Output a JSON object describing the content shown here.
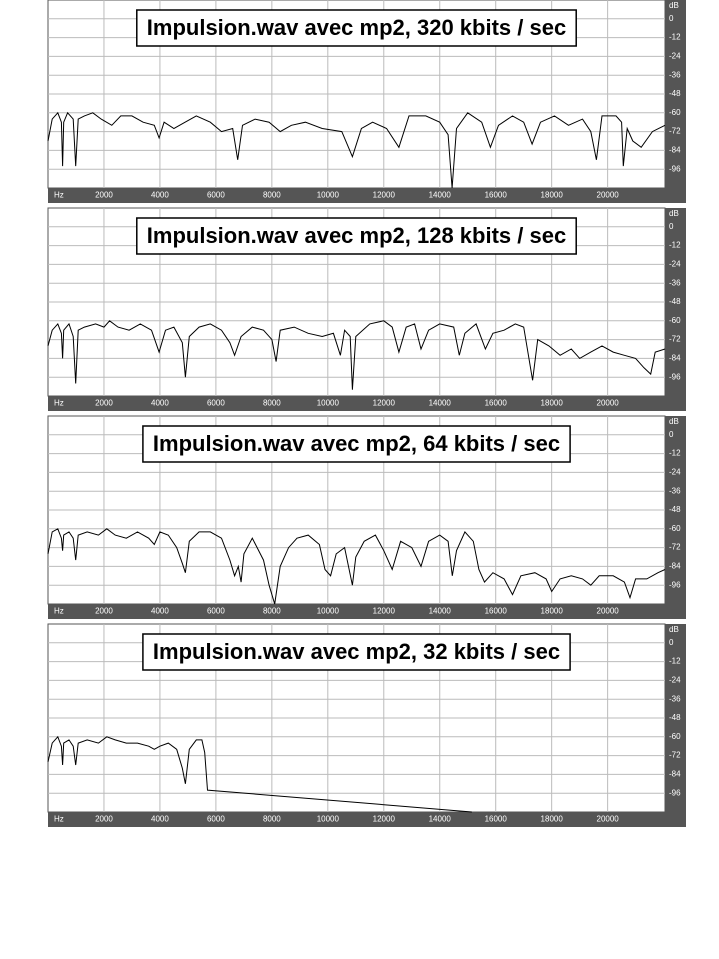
{
  "chart_data": [
    {
      "type": "line",
      "title": "Impulsion.wav avec mp2, 320 kbits / sec",
      "x_label": "Hz",
      "y_label": "dB",
      "color": "#000000",
      "grid": true,
      "xlim": [
        0,
        22050
      ],
      "ylim": [
        -108,
        12
      ],
      "xticks": [
        2000,
        4000,
        6000,
        8000,
        10000,
        12000,
        14000,
        16000,
        18000,
        20000
      ],
      "yticks": [
        0,
        -12,
        -24,
        -36,
        -48,
        -60,
        -72,
        -84,
        -96
      ],
      "x": [
        0,
        150,
        350,
        480,
        520,
        560,
        700,
        900,
        990,
        1080,
        1300,
        1600,
        1900,
        2280,
        2600,
        3000,
        3400,
        3800,
        3970,
        4150,
        4500,
        4900,
        5300,
        5800,
        6200,
        6600,
        6780,
        6950,
        7400,
        7900,
        8300,
        8700,
        9200,
        9800,
        10500,
        10880,
        11200,
        11600,
        12100,
        12540,
        12900,
        13500,
        14000,
        14300,
        14440,
        14600,
        15000,
        15500,
        15810,
        16100,
        16600,
        17000,
        17300,
        17600,
        18100,
        18600,
        19100,
        19400,
        19600,
        19800,
        20300,
        20500,
        20560,
        20700,
        20900,
        21200,
        21600,
        22050
      ],
      "values": [
        -78,
        -64,
        -60,
        -66,
        -94,
        -66,
        -60,
        -64,
        -94,
        -64,
        -62,
        -60,
        -64,
        -68,
        -62,
        -62,
        -66,
        -68,
        -76,
        -66,
        -70,
        -66,
        -62,
        -66,
        -72,
        -70,
        -90,
        -68,
        -64,
        -66,
        -72,
        -68,
        -66,
        -70,
        -72,
        -88,
        -70,
        -66,
        -70,
        -82,
        -62,
        -62,
        -66,
        -74,
        -108,
        -70,
        -60,
        -66,
        -82,
        -68,
        -62,
        -66,
        -80,
        -66,
        -62,
        -68,
        -64,
        -72,
        -90,
        -62,
        -62,
        -66,
        -94,
        -70,
        -78,
        -82,
        -72,
        -68
      ]
    },
    {
      "type": "line",
      "title": "Impulsion.wav avec mp2, 128 kbits / sec",
      "x_label": "Hz",
      "y_label": "dB",
      "color": "#000000",
      "grid": true,
      "xlim": [
        0,
        22050
      ],
      "ylim": [
        -108,
        12
      ],
      "xticks": [
        2000,
        4000,
        6000,
        8000,
        10000,
        12000,
        14000,
        16000,
        18000,
        20000
      ],
      "yticks": [
        0,
        -12,
        -24,
        -36,
        -48,
        -60,
        -72,
        -84,
        -96
      ],
      "x": [
        0,
        150,
        350,
        480,
        520,
        560,
        750,
        900,
        990,
        1080,
        1300,
        1700,
        2000,
        2200,
        2500,
        2900,
        3300,
        3700,
        3970,
        4200,
        4500,
        4800,
        4910,
        5050,
        5400,
        5800,
        6200,
        6500,
        6670,
        6900,
        7300,
        7700,
        8000,
        8150,
        8300,
        8800,
        9300,
        9800,
        10200,
        10450,
        10600,
        10800,
        10880,
        11000,
        11500,
        12000,
        12300,
        12540,
        12800,
        13100,
        13330,
        13600,
        14000,
        14500,
        14700,
        14900,
        15300,
        15630,
        15900,
        16300,
        16700,
        17000,
        17320,
        17500,
        17900,
        18300,
        18700,
        19000,
        19400,
        19800,
        20200,
        20600,
        21000,
        21300,
        21540,
        21700,
        22050
      ],
      "values": [
        -76,
        -66,
        -62,
        -68,
        -84,
        -66,
        -62,
        -70,
        -100,
        -66,
        -64,
        -62,
        -64,
        -60,
        -64,
        -66,
        -62,
        -66,
        -80,
        -66,
        -64,
        -74,
        -96,
        -70,
        -64,
        -62,
        -66,
        -74,
        -82,
        -70,
        -64,
        -66,
        -72,
        -86,
        -66,
        -64,
        -68,
        -70,
        -68,
        -82,
        -66,
        -70,
        -104,
        -70,
        -62,
        -60,
        -64,
        -80,
        -64,
        -62,
        -78,
        -66,
        -62,
        -64,
        -82,
        -68,
        -62,
        -78,
        -68,
        -66,
        -62,
        -64,
        -98,
        -72,
        -76,
        -82,
        -78,
        -84,
        -80,
        -76,
        -80,
        -82,
        -84,
        -90,
        -94,
        -80,
        -78
      ]
    },
    {
      "type": "line",
      "title": "Impulsion.wav avec mp2, 64 kbits / sec",
      "x_label": "Hz",
      "y_label": "dB",
      "color": "#000000",
      "grid": true,
      "xlim": [
        0,
        22050
      ],
      "ylim": [
        -108,
        12
      ],
      "xticks": [
        2000,
        4000,
        6000,
        8000,
        10000,
        12000,
        14000,
        16000,
        18000,
        20000
      ],
      "yticks": [
        0,
        -12,
        -24,
        -36,
        -48,
        -60,
        -72,
        -84,
        -96
      ],
      "x": [
        0,
        150,
        350,
        480,
        520,
        560,
        750,
        900,
        990,
        1080,
        1400,
        1800,
        2100,
        2400,
        2800,
        3200,
        3600,
        3800,
        4000,
        4300,
        4600,
        4800,
        4910,
        5050,
        5400,
        5800,
        6200,
        6500,
        6670,
        6800,
        6900,
        7000,
        7300,
        7700,
        7900,
        8100,
        8300,
        8600,
        8900,
        9300,
        9700,
        9900,
        10100,
        10300,
        10600,
        10880,
        11000,
        11300,
        11700,
        12000,
        12300,
        12600,
        13000,
        13330,
        13600,
        14000,
        14300,
        14450,
        14600,
        14900,
        15200,
        15400,
        15600,
        15900,
        16300,
        16600,
        16900,
        17400,
        17800,
        18000,
        18300,
        18700,
        19100,
        19400,
        19700,
        20200,
        20600,
        20800,
        21000,
        21400,
        21800,
        22050
      ],
      "values": [
        -76,
        -62,
        -60,
        -66,
        -74,
        -64,
        -62,
        -66,
        -80,
        -64,
        -62,
        -64,
        -60,
        -64,
        -66,
        -62,
        -66,
        -70,
        -62,
        -64,
        -72,
        -82,
        -88,
        -68,
        -62,
        -62,
        -66,
        -80,
        -90,
        -84,
        -94,
        -76,
        -66,
        -80,
        -96,
        -108,
        -84,
        -72,
        -66,
        -64,
        -70,
        -86,
        -90,
        -76,
        -72,
        -96,
        -78,
        -68,
        -64,
        -74,
        -86,
        -68,
        -72,
        -84,
        -68,
        -64,
        -68,
        -90,
        -74,
        -62,
        -68,
        -86,
        -94,
        -88,
        -92,
        -102,
        -90,
        -88,
        -92,
        -100,
        -92,
        -90,
        -92,
        -96,
        -90,
        -90,
        -94,
        -104,
        -92,
        -92,
        -88,
        -86
      ]
    },
    {
      "type": "line",
      "title": "Impulsion.wav avec mp2, 32 kbits / sec",
      "x_label": "Hz",
      "y_label": "dB",
      "color": "#000000",
      "grid": true,
      "xlim": [
        0,
        22050
      ],
      "ylim": [
        -108,
        12
      ],
      "xticks": [
        2000,
        4000,
        6000,
        8000,
        10000,
        12000,
        14000,
        16000,
        18000,
        20000
      ],
      "yticks": [
        0,
        -12,
        -24,
        -36,
        -48,
        -60,
        -72,
        -84,
        -96
      ],
      "x": [
        0,
        150,
        350,
        480,
        520,
        560,
        750,
        900,
        990,
        1080,
        1400,
        1800,
        2100,
        2400,
        2800,
        3200,
        3600,
        3800,
        4000,
        4300,
        4600,
        4800,
        4910,
        5050,
        5300,
        5500,
        5600,
        5700,
        15150
      ],
      "values": [
        -76,
        -64,
        -60,
        -66,
        -78,
        -64,
        -62,
        -66,
        -78,
        -64,
        -62,
        -64,
        -60,
        -62,
        -64,
        -64,
        -66,
        -68,
        -66,
        -64,
        -68,
        -80,
        -90,
        -68,
        -62,
        -62,
        -70,
        -94,
        -108
      ]
    }
  ]
}
